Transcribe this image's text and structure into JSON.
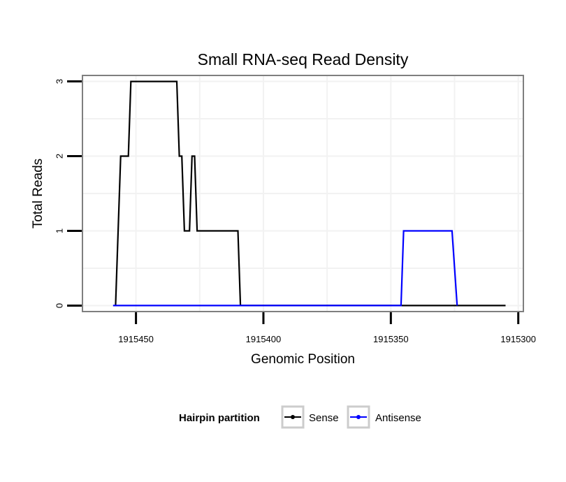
{
  "chart_data": {
    "type": "line",
    "title": "Small RNA-seq Read Density",
    "xlabel": "Genomic Position",
    "ylabel": "Total Reads",
    "x_reversed": true,
    "xlim": [
      1915471,
      1915298
    ],
    "ylim": [
      -0.08,
      3.08
    ],
    "x_ticks": [
      1915450,
      1915400,
      1915350,
      1915300
    ],
    "x_tick_labels": [
      "1915450",
      "1915400",
      "1915350",
      "1915300"
    ],
    "y_ticks": [
      0,
      1,
      2,
      3
    ],
    "y_tick_labels": [
      "0",
      "1",
      "2",
      "3"
    ],
    "grid": true,
    "legend": {
      "title": "Hairpin partition",
      "position": "bottom"
    },
    "series": [
      {
        "name": "Sense",
        "color": "#000000",
        "points": [
          [
            1915458,
            0
          ],
          [
            1915456,
            2
          ],
          [
            1915453,
            2
          ],
          [
            1915452,
            3
          ],
          [
            1915445,
            3
          ],
          [
            1915434,
            3
          ],
          [
            1915433,
            2
          ],
          [
            1915432,
            2
          ],
          [
            1915431,
            1
          ],
          [
            1915429,
            1
          ],
          [
            1915428,
            2
          ],
          [
            1915427,
            2
          ],
          [
            1915426,
            1
          ],
          [
            1915410,
            1
          ],
          [
            1915409,
            0
          ],
          [
            1915341,
            0
          ],
          [
            1915305,
            0
          ]
        ]
      },
      {
        "name": "Antisense",
        "color": "#0000ff",
        "points": [
          [
            1915459,
            0
          ],
          [
            1915409,
            0
          ],
          [
            1915346,
            0
          ],
          [
            1915345,
            1
          ],
          [
            1915326,
            1
          ],
          [
            1915324,
            0
          ]
        ]
      }
    ]
  }
}
